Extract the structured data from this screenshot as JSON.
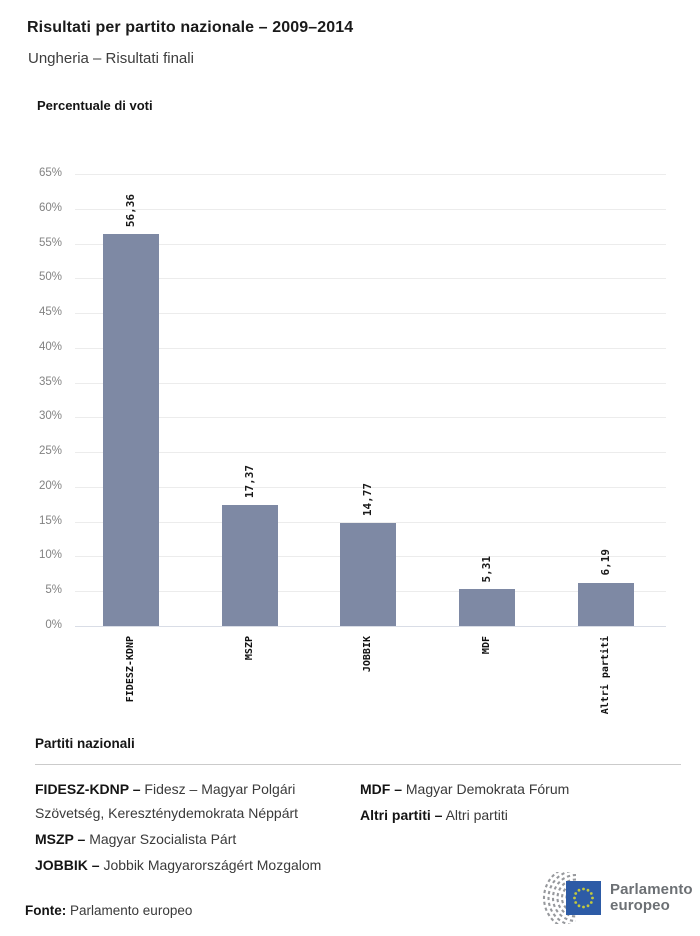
{
  "header": {
    "title": "Risultati per partito nazionale – 2009–2014",
    "subtitle": "Ungheria – Risultati finali"
  },
  "chart_data": {
    "type": "bar",
    "title": "Percentuale di voti",
    "ylabel": "Percentuale di voti",
    "categories": [
      "FIDESZ-KDNP",
      "MSZP",
      "JOBBIK",
      "MDF",
      "Altri partiti"
    ],
    "values": [
      56.36,
      17.37,
      14.77,
      5.31,
      6.19
    ],
    "value_labels": [
      "56,36",
      "17,37",
      "14,77",
      "5,31",
      "6,19"
    ],
    "ylim": [
      0,
      65
    ],
    "ytick_step": 5,
    "ytick_labels": [
      "0%",
      "5%",
      "10%",
      "15%",
      "20%",
      "25%",
      "30%",
      "35%",
      "40%",
      "45%",
      "50%",
      "55%",
      "60%",
      "65%"
    ],
    "grid": true,
    "legend_position": "none",
    "bar_color": "#7e89a4"
  },
  "legend": {
    "title": "Partiti nazionali",
    "columns": [
      [
        {
          "term": "FIDESZ-KDNP –",
          "description": "Fidesz – Magyar Polgári Szövetség, Kereszténydemokrata Néppárt"
        },
        {
          "term": "MSZP –",
          "description": "Magyar Szocialista Párt"
        },
        {
          "term": "JOBBIK –",
          "description": "Jobbik Magyarországért Mozgalom"
        }
      ],
      [
        {
          "term": "MDF –",
          "description": "Magyar Demokrata Fórum"
        },
        {
          "term": "Altri partiti –",
          "description": "Altri partiti"
        }
      ]
    ]
  },
  "footer": {
    "source_label": "Fonte:",
    "source_value": "Parlamento europeo",
    "logo_line1": "Parlamento",
    "logo_line2": "europeo"
  },
  "colors": {
    "bar": "#7e89a4",
    "eu_blue": "#2d5ba6",
    "star_yellow": "#c2c83d",
    "hemicycle_gray": "#97999d"
  }
}
